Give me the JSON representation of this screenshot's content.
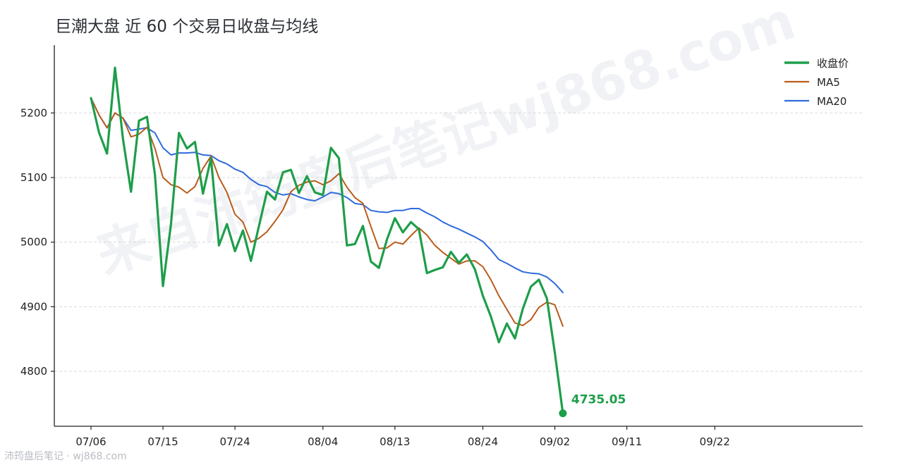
{
  "watermark": "来自沛筠盘后笔记wj868.com",
  "footer": "沛筠盘后笔记 · wj868.com",
  "chart_data": {
    "type": "line",
    "title": "巨潮大盘 近 60 个交易日收盘与均线",
    "xlabel": "",
    "ylabel": "",
    "x": [
      "07/06",
      "07/07",
      "07/08",
      "07/09",
      "07/10",
      "07/11",
      "07/12",
      "07/13",
      "07/14",
      "07/15",
      "07/16",
      "07/17",
      "07/18",
      "07/19",
      "07/20",
      "07/21",
      "07/22",
      "07/23",
      "07/24",
      "07/25",
      "07/26",
      "07/27",
      "07/28",
      "07/29",
      "07/30",
      "07/31",
      "08/01",
      "08/02",
      "08/03",
      "08/04",
      "08/05",
      "08/06",
      "08/07",
      "08/08",
      "08/09",
      "08/10",
      "08/11",
      "08/12",
      "08/13",
      "08/14",
      "08/15",
      "08/16",
      "08/17",
      "08/18",
      "08/19",
      "08/20",
      "08/21",
      "08/22",
      "08/23",
      "08/24",
      "08/25",
      "08/26",
      "08/27",
      "08/28",
      "08/29",
      "08/30",
      "08/31",
      "09/01",
      "09/02",
      "09/03",
      "09/04",
      "09/05",
      "09/06",
      "09/07",
      "09/08",
      "09/09",
      "09/10",
      "09/11",
      "09/12",
      "09/13",
      "09/14",
      "09/15",
      "09/16",
      "09/17",
      "09/18",
      "09/19",
      "09/20",
      "09/21",
      "09/22",
      "09/23",
      "09/24",
      "09/25",
      "09/26",
      "09/27",
      "09/28",
      "09/29",
      "09/30",
      "10/01",
      "10/02",
      "10/03",
      "10/04",
      "10/05",
      "10/06"
    ],
    "xticks": [
      "07/06",
      "07/15",
      "07/24",
      "08/04",
      "08/13",
      "08/24",
      "09/02",
      "09/11",
      "09/22"
    ],
    "yticks": [
      4800,
      4900,
      5000,
      5100,
      5200
    ],
    "ylim": [
      4715,
      5305
    ],
    "grid": "horizontal dashed",
    "legend_position": "top-right",
    "series": [
      {
        "name": "收盘价",
        "color": "#1e9e4a",
        "width": 3.2,
        "points": [
          [
            "07/06",
            5223
          ],
          [
            "07/07",
            5170
          ],
          [
            "07/08",
            5137
          ],
          [
            "07/09",
            5270
          ],
          [
            "07/10",
            5160
          ],
          [
            "07/11",
            5078
          ],
          [
            "07/12",
            5188
          ],
          [
            "07/13",
            5194
          ],
          [
            "07/14",
            5104
          ],
          [
            "07/15",
            4932
          ],
          [
            "07/16",
            5028
          ],
          [
            "07/17",
            5169
          ],
          [
            "07/18",
            5145
          ],
          [
            "07/19",
            5155
          ],
          [
            "07/20",
            5075
          ],
          [
            "07/21",
            5130
          ],
          [
            "07/22",
            4995
          ],
          [
            "07/23",
            5028
          ],
          [
            "07/24",
            4986
          ],
          [
            "07/25",
            5018
          ],
          [
            "07/26",
            4971
          ],
          [
            "07/27",
            5025
          ],
          [
            "07/28",
            5078
          ],
          [
            "07/29",
            5066
          ],
          [
            "07/30",
            5108
          ],
          [
            "07/31",
            5112
          ],
          [
            "08/01",
            5076
          ],
          [
            "08/02",
            5102
          ],
          [
            "08/03",
            5077
          ],
          [
            "08/04",
            5073
          ],
          [
            "08/05",
            5146
          ],
          [
            "08/06",
            5130
          ],
          [
            "08/07",
            4995
          ],
          [
            "08/08",
            4997
          ],
          [
            "08/09",
            5025
          ],
          [
            "08/10",
            4970
          ],
          [
            "08/11",
            4960
          ],
          [
            "08/12",
            5004
          ],
          [
            "08/13",
            5037
          ],
          [
            "08/14",
            5015
          ],
          [
            "08/15",
            5031
          ],
          [
            "08/16",
            5020
          ],
          [
            "08/17",
            4952
          ],
          [
            "08/18",
            4957
          ],
          [
            "08/19",
            4961
          ],
          [
            "08/20",
            4985
          ],
          [
            "08/21",
            4968
          ],
          [
            "08/22",
            4981
          ],
          [
            "08/23",
            4958
          ],
          [
            "08/24",
            4917
          ],
          [
            "08/25",
            4885
          ],
          [
            "08/26",
            4845
          ],
          [
            "08/27",
            4874
          ],
          [
            "08/28",
            4851
          ],
          [
            "08/29",
            4897
          ],
          [
            "08/30",
            4931
          ],
          [
            "08/31",
            4942
          ],
          [
            "09/01",
            4913
          ],
          [
            "09/02",
            4829
          ],
          [
            "09/03",
            4735.05
          ]
        ]
      },
      {
        "name": "MA5",
        "color": "#b85c1c",
        "width": 2,
        "points": [
          [
            "07/06",
            5223
          ],
          [
            "07/07",
            5197
          ],
          [
            "07/08",
            5177
          ],
          [
            "07/09",
            5200
          ],
          [
            "07/10",
            5192
          ],
          [
            "07/11",
            5163
          ],
          [
            "07/12",
            5167
          ],
          [
            "07/13",
            5178
          ],
          [
            "07/14",
            5145
          ],
          [
            "07/15",
            5100
          ],
          [
            "07/16",
            5089
          ],
          [
            "07/17",
            5085
          ],
          [
            "07/18",
            5076
          ],
          [
            "07/19",
            5086
          ],
          [
            "07/20",
            5114
          ],
          [
            "07/21",
            5133
          ],
          [
            "07/22",
            5100
          ],
          [
            "07/23",
            5077
          ],
          [
            "07/24",
            5043
          ],
          [
            "07/25",
            5031
          ],
          [
            "07/26",
            5000
          ],
          [
            "07/27",
            5006
          ],
          [
            "07/28",
            5016
          ],
          [
            "07/29",
            5032
          ],
          [
            "07/30",
            5050
          ],
          [
            "07/31",
            5078
          ],
          [
            "08/01",
            5088
          ],
          [
            "08/02",
            5093
          ],
          [
            "08/03",
            5095
          ],
          [
            "08/04",
            5089
          ],
          [
            "08/05",
            5095
          ],
          [
            "08/06",
            5106
          ],
          [
            "08/07",
            5085
          ],
          [
            "08/08",
            5069
          ],
          [
            "08/09",
            5060
          ],
          [
            "08/10",
            5024
          ],
          [
            "08/11",
            4990
          ],
          [
            "08/12",
            4991
          ],
          [
            "08/13",
            5000
          ],
          [
            "08/14",
            4997
          ],
          [
            "08/15",
            5010
          ],
          [
            "08/16",
            5022
          ],
          [
            "08/17",
            5011
          ],
          [
            "08/18",
            4995
          ],
          [
            "08/19",
            4984
          ],
          [
            "08/20",
            4975
          ],
          [
            "08/21",
            4966
          ],
          [
            "08/22",
            4971
          ],
          [
            "08/23",
            4971
          ],
          [
            "08/24",
            4962
          ],
          [
            "08/25",
            4942
          ],
          [
            "08/26",
            4917
          ],
          [
            "08/27",
            4896
          ],
          [
            "08/28",
            4875
          ],
          [
            "08/29",
            4871
          ],
          [
            "08/30",
            4880
          ],
          [
            "08/31",
            4899
          ],
          [
            "09/01",
            4907
          ],
          [
            "09/02",
            4903
          ],
          [
            "09/03",
            4870
          ]
        ]
      },
      {
        "name": "MA20",
        "color": "#2f6bdb",
        "width": 2,
        "points": [
          [
            "07/06",
            5223
          ],
          [
            "07/07",
            5197
          ],
          [
            "07/08",
            5177
          ],
          [
            "07/09",
            5200
          ],
          [
            "07/10",
            5192
          ],
          [
            "07/11",
            5173
          ],
          [
            "07/12",
            5175
          ],
          [
            "07/13",
            5177
          ],
          [
            "07/14",
            5169
          ],
          [
            "07/15",
            5146
          ],
          [
            "07/16",
            5135
          ],
          [
            "07/17",
            5138
          ],
          [
            "07/18",
            5138
          ],
          [
            "07/19",
            5139
          ],
          [
            "07/20",
            5135
          ],
          [
            "07/21",
            5134
          ],
          [
            "07/22",
            5126
          ],
          [
            "07/23",
            5121
          ],
          [
            "07/24",
            5113
          ],
          [
            "07/25",
            5108
          ],
          [
            "07/26",
            5097
          ],
          [
            "07/27",
            5089
          ],
          [
            "07/28",
            5086
          ],
          [
            "07/29",
            5077
          ],
          [
            "07/30",
            5073
          ],
          [
            "07/31",
            5075
          ],
          [
            "08/01",
            5070
          ],
          [
            "08/02",
            5066
          ],
          [
            "08/03",
            5064
          ],
          [
            "08/04",
            5070
          ],
          [
            "08/05",
            5077
          ],
          [
            "08/06",
            5075
          ],
          [
            "08/07",
            5069
          ],
          [
            "08/08",
            5060
          ],
          [
            "08/09",
            5058
          ],
          [
            "08/10",
            5049
          ],
          [
            "08/11",
            5047
          ],
          [
            "08/12",
            5046
          ],
          [
            "08/13",
            5049
          ],
          [
            "08/14",
            5049
          ],
          [
            "08/15",
            5052
          ],
          [
            "08/16",
            5052
          ],
          [
            "08/17",
            5045
          ],
          [
            "08/18",
            5039
          ],
          [
            "08/19",
            5031
          ],
          [
            "08/20",
            5025
          ],
          [
            "08/21",
            5020
          ],
          [
            "08/22",
            5014
          ],
          [
            "08/23",
            5008
          ],
          [
            "08/24",
            5001
          ],
          [
            "08/25",
            4988
          ],
          [
            "08/26",
            4973
          ],
          [
            "08/27",
            4967
          ],
          [
            "08/28",
            4960
          ],
          [
            "08/29",
            4954
          ],
          [
            "08/30",
            4952
          ],
          [
            "08/31",
            4951
          ],
          [
            "09/01",
            4946
          ],
          [
            "09/02",
            4936
          ],
          [
            "09/03",
            4922
          ]
        ]
      }
    ],
    "last_point": {
      "x": "09/03",
      "y": 4735.05,
      "label": "4735.05",
      "color": "#1e9e4a"
    }
  }
}
